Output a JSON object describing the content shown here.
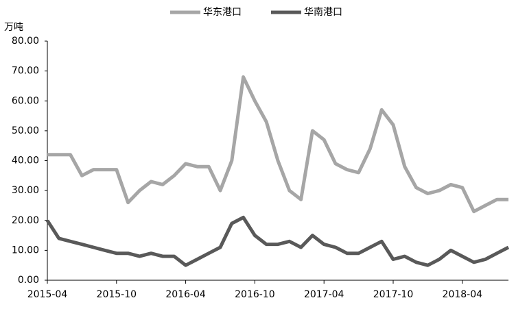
{
  "chart_data": {
    "type": "line",
    "y_label": "万吨",
    "x": [
      "2015-04",
      "2015-05",
      "2015-06",
      "2015-07",
      "2015-08",
      "2015-09",
      "2015-10",
      "2015-11",
      "2015-12",
      "2016-01",
      "2016-02",
      "2016-03",
      "2016-04",
      "2016-05",
      "2016-06",
      "2016-07",
      "2016-08",
      "2016-09",
      "2016-10",
      "2016-11",
      "2016-12",
      "2017-01",
      "2017-02",
      "2017-03",
      "2017-04",
      "2017-05",
      "2017-06",
      "2017-07",
      "2017-08",
      "2017-09",
      "2017-10",
      "2017-11",
      "2017-12",
      "2018-01",
      "2018-02",
      "2018-03",
      "2018-04",
      "2018-05",
      "2018-06",
      "2018-07",
      "2018-08"
    ],
    "series": [
      {
        "name": "华东港口",
        "color": "#a6a6a6",
        "values": [
          42,
          42,
          42,
          35,
          37,
          37,
          37,
          26,
          30,
          33,
          32,
          35,
          39,
          38,
          38,
          30,
          40,
          68,
          60,
          53,
          40,
          30,
          27,
          50,
          47,
          39,
          37,
          36,
          44,
          57,
          52,
          38,
          31,
          29,
          30,
          32,
          31,
          23,
          25,
          27,
          27
        ]
      },
      {
        "name": "华南港口",
        "color": "#595959",
        "values": [
          20,
          14,
          13,
          12,
          11,
          10,
          9,
          9,
          8,
          9,
          8,
          8,
          5,
          7,
          9,
          11,
          19,
          21,
          15,
          12,
          12,
          13,
          11,
          15,
          12,
          11,
          9,
          9,
          11,
          13,
          7,
          8,
          6,
          5,
          7,
          10,
          8,
          6,
          7,
          9,
          11
        ]
      }
    ],
    "xlim": [
      "2015-04",
      "2018-08"
    ],
    "xticks": [
      "2015-04",
      "2015-10",
      "2016-04",
      "2016-10",
      "2017-04",
      "2017-10",
      "2018-04"
    ],
    "ylim": [
      0,
      80
    ],
    "yticks": [
      {
        "value": 0,
        "label": "0.00"
      },
      {
        "value": 10,
        "label": "10.00"
      },
      {
        "value": 20,
        "label": "20.00"
      },
      {
        "value": 30,
        "label": "30.00"
      },
      {
        "value": 40,
        "label": "40.00"
      },
      {
        "value": 50,
        "label": "50.00"
      },
      {
        "value": 60,
        "label": "60.00"
      },
      {
        "value": 70,
        "label": "70.00"
      },
      {
        "value": 80,
        "label": "80.00"
      }
    ],
    "legend": "top",
    "grid": false
  }
}
